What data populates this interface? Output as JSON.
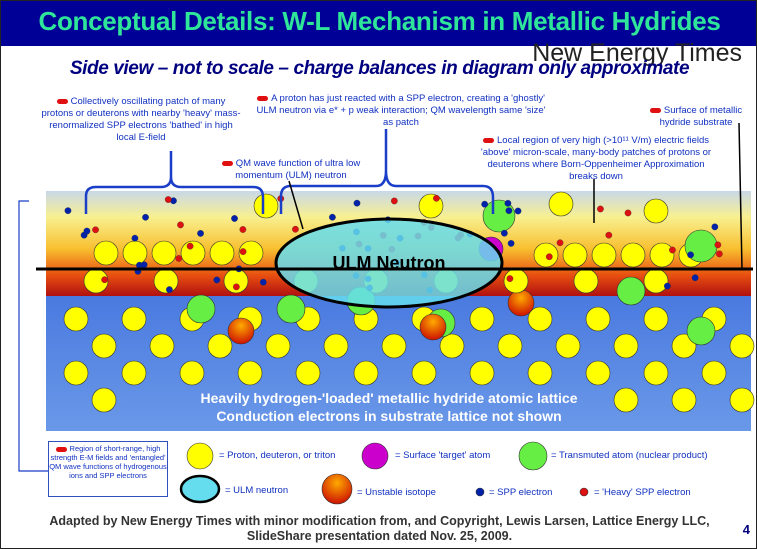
{
  "title": "Conceptual Details: W-L Mechanism in Metallic Hydrides",
  "brand": "New Energy Times",
  "subtitle": "Side view – not to scale – charge balances in diagram only approximate",
  "notes": {
    "patch": "Collectively oscillating patch of many protons or deuterons with nearby 'heavy' mass-renormalized SPP electrons 'bathed' in high local E-field",
    "proton": "A proton has just reacted with a SPP electron, creating a 'ghostly' ULM neutron via e* + p weak interaction; QM wavelength same 'size' as patch",
    "surface": "Surface of metallic hydride substrate",
    "wave": "QM wave function of ultra low momentum (ULM) neutron",
    "local_region": "Local region of very high (>10¹¹ V/m) electric fields 'above' micron-scale, many-body patches of protons or deuterons where Born-Oppenheimer Approximation breaks down"
  },
  "diagram": {
    "ulm_label": "ULM Neutron",
    "lattice_line1": "Heavily hydrogen-'loaded' metallic hydride atomic lattice",
    "lattice_line2": "Conduction electrons in substrate lattice not shown"
  },
  "legend": {
    "region": "Region of short-range, high strength E-M fields and 'entangled' QM wave functions of hydrogenous ions and SPP electrons",
    "proton": "= Proton, deuteron, or triton",
    "target": "= Surface 'target' atom",
    "transmuted": "= Transmuted atom (nuclear product)",
    "ulm": "= ULM neutron",
    "unstable": "= Unstable isotope",
    "spp": "= SPP electron",
    "heavy_spp": "= 'Heavy' SPP electron"
  },
  "colors": {
    "title_bg": "#000096",
    "title_text": "#2ee59a",
    "proton": "#ffff00",
    "target": "#cc00cc",
    "transmuted": "#66ee44",
    "ulm": "#66ddee",
    "unstable": "#ff5500",
    "spp": "#0022aa",
    "heavy_spp": "#dd1111",
    "lattice": "#5588dd"
  },
  "credit_line1": "Adapted by New Energy Times with minor modification from, and Copyright, Lewis Larsen, Lattice Energy LLC,",
  "credit_line2": "SlideShare presentation dated Nov. 25, 2009.",
  "page_number": "4"
}
